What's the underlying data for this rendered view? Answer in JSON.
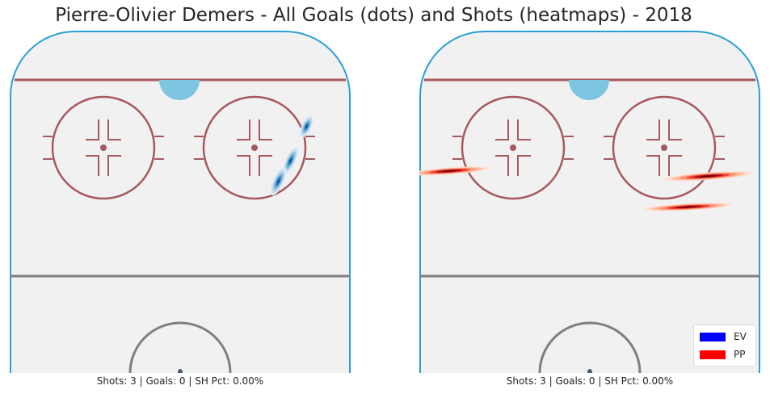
{
  "title": "Pierre-Olivier Demers - All Goals (dots) and Shots (heatmaps) - 2018",
  "colors": {
    "ice": "#f1f1f1",
    "boards": "#2a9fd6",
    "red_line": "#a6595e",
    "grey_line": "#7f7f7f",
    "crease": "#7ec5e2",
    "ev": "#0000ff",
    "pp": "#ff0000",
    "ev_heat": [
      "#deebf7",
      "#c6dbef",
      "#9ecae1",
      "#6baed6",
      "#3182bd",
      "#08519c"
    ],
    "pp_heat": [
      "#fee0d2",
      "#fcbba1",
      "#fc9272",
      "#ef3b2c",
      "#a50f15",
      "#67000d"
    ]
  },
  "legend": {
    "position": "lower-right",
    "items": [
      {
        "label": "EV",
        "color": "#0000ff"
      },
      {
        "label": "PP",
        "color": "#ff0000"
      }
    ]
  },
  "chart_data": [
    {
      "type": "heatmap",
      "strength": "EV",
      "caption": "Shots: 3 | Goals: 0 | SH Pct: 0.00%",
      "stats": {
        "shots": 3,
        "goals": 0,
        "sh_pct": "0.00%"
      },
      "xlim": [
        -42.5,
        42.5
      ],
      "ylim": [
        0,
        100
      ],
      "goals": [],
      "shots": [
        {
          "x": 31.5,
          "y": 72,
          "spread_x": 1.2,
          "spread_y": 3.5,
          "tilt": 25
        },
        {
          "x": 27.5,
          "y": 62,
          "spread_x": 1.2,
          "spread_y": 4.5,
          "tilt": 25
        },
        {
          "x": 24.5,
          "y": 56,
          "spread_x": 1.3,
          "spread_y": 4.5,
          "tilt": 25
        }
      ]
    },
    {
      "type": "heatmap",
      "strength": "PP",
      "caption": "Shots: 3 | Goals: 0 | SH Pct: 0.00%",
      "stats": {
        "shots": 3,
        "goals": 0,
        "sh_pct": "0.00%"
      },
      "xlim": [
        -42.5,
        42.5
      ],
      "ylim": [
        0,
        100
      ],
      "goals": [],
      "shots": [
        {
          "x": -35,
          "y": 59,
          "spread_x": 10,
          "spread_y": 1.0,
          "tilt": -4
        },
        {
          "x": 29.5,
          "y": 57.5,
          "spread_x": 11,
          "spread_y": 1.1,
          "tilt": -4
        },
        {
          "x": 24.5,
          "y": 48.5,
          "spread_x": 11,
          "spread_y": 1.0,
          "tilt": -3
        }
      ]
    }
  ]
}
